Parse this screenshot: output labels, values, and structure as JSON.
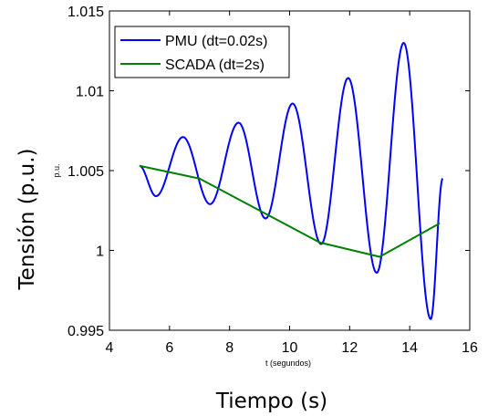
{
  "chart_data": {
    "type": "line",
    "xlabel_outer": "Tiempo (s)",
    "ylabel_outer": "Tensión (p.u.)",
    "xlabel_inner": "t (segundos)",
    "ylabel_inner": "p.u.",
    "xlim": [
      4,
      16
    ],
    "ylim": [
      0.995,
      1.015
    ],
    "xticks": [
      4,
      6,
      8,
      10,
      12,
      14,
      16
    ],
    "xtick_labels": [
      "4",
      "6",
      "8",
      "10",
      "12",
      "14",
      "16"
    ],
    "yticks": [
      0.995,
      1,
      1.005,
      1.01,
      1.015
    ],
    "ytick_labels": [
      "0.995",
      "1",
      "1.005",
      "1.01",
      "1.015"
    ],
    "grid": false,
    "legend_position": "top-left",
    "series": [
      {
        "name": "PMU (dt=0.02s)",
        "color": "#0000ff",
        "kind": "oscillation",
        "x_start": 5.0,
        "x_end": 15.1,
        "peaks": [
          {
            "x": 5.0,
            "y": 1.0053
          },
          {
            "x": 6.45,
            "y": 1.0071
          },
          {
            "x": 8.3,
            "y": 1.008
          },
          {
            "x": 10.1,
            "y": 1.0092
          },
          {
            "x": 11.95,
            "y": 1.0108
          },
          {
            "x": 13.8,
            "y": 1.013
          }
        ],
        "troughs": [
          {
            "x": 5.55,
            "y": 1.0034
          },
          {
            "x": 7.35,
            "y": 1.0029
          },
          {
            "x": 9.2,
            "y": 1.002
          },
          {
            "x": 11.05,
            "y": 1.0004
          },
          {
            "x": 12.9,
            "y": 0.9986
          },
          {
            "x": 14.7,
            "y": 0.9957
          }
        ],
        "end_point": {
          "x": 15.1,
          "y": 1.0045
        }
      },
      {
        "name": "SCADA (dt=2s)",
        "color": "#008000",
        "kind": "polyline",
        "x": [
          5,
          7,
          9,
          11,
          13,
          15
        ],
        "y": [
          1.0053,
          1.0045,
          1.0025,
          1.0005,
          0.9996,
          1.0017
        ]
      }
    ]
  }
}
